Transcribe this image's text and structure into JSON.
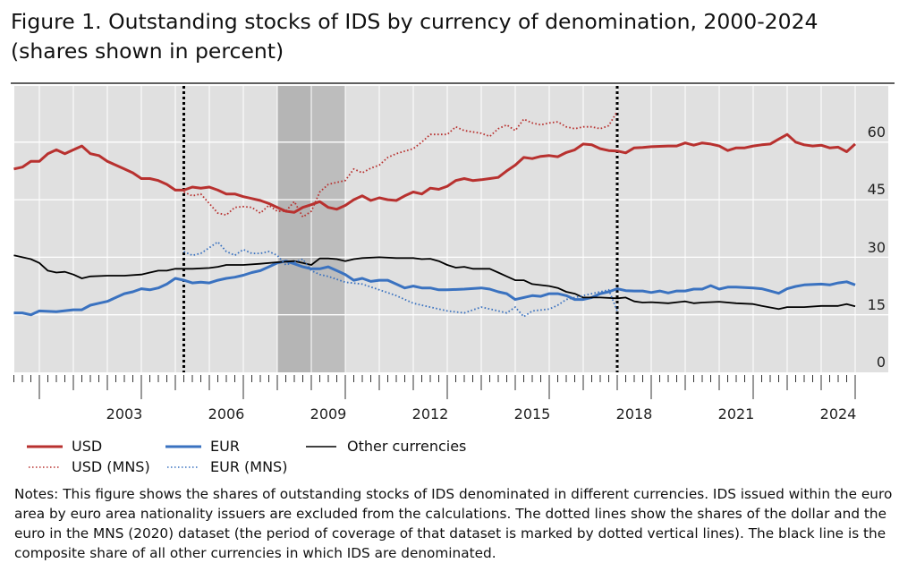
{
  "title": "Figure 1. Outstanding stocks of IDS by currency of denomination, 2000-2024",
  "subtitle": "(shares shown in percent)",
  "notes": "Notes: This figure shows the shares of outstanding stocks of IDS denominated in different currencies. IDS issued within the euro area by euro area nationality issuers are excluded from the calculations. The dotted lines show the shares of the dollar and the euro in the MNS (2020) dataset (the period of coverage of that dataset is marked by dotted vertical lines). The black line is the composite share of all other currencies in which IDS are denominated.",
  "chart_data": {
    "type": "line",
    "xlim": [
      2000.25,
      2025.0
    ],
    "ylim": [
      0,
      74.5
    ],
    "y_axis_side": "right",
    "yticks": [
      "0",
      "15",
      "30",
      "45",
      "60"
    ],
    "xticks": [
      "2003",
      "2006",
      "2009",
      "2012",
      "2015",
      "2018",
      "2021",
      "2024"
    ],
    "grid": true,
    "legend_placement": "bottom",
    "vertical_dotted_lines": [
      2005.25,
      2018.0
    ],
    "shaded_periods": [
      [
        2008.0,
        2009.0
      ],
      [
        2009.0,
        2010.0
      ]
    ],
    "colors": {
      "usd": "#b8312f",
      "eur": "#3a72c0",
      "other": "#000000",
      "background": "#e0e0e0",
      "shade": "#b5b5b5"
    },
    "series": [
      {
        "name": "USD",
        "key": "usd",
        "style": "solid",
        "x": [
          2000.25,
          2000.5,
          2000.75,
          2001,
          2001.25,
          2001.5,
          2001.75,
          2002,
          2002.25,
          2002.5,
          2002.75,
          2003,
          2003.25,
          2003.5,
          2003.75,
          2004,
          2004.25,
          2004.5,
          2004.75,
          2005,
          2005.25,
          2005.5,
          2005.75,
          2006,
          2006.25,
          2006.5,
          2006.75,
          2007,
          2007.25,
          2007.5,
          2007.75,
          2008,
          2008.25,
          2008.5,
          2008.75,
          2009,
          2009.25,
          2009.5,
          2009.75,
          2010,
          2010.25,
          2010.5,
          2010.75,
          2011,
          2011.25,
          2011.5,
          2011.75,
          2012,
          2012.25,
          2012.5,
          2012.75,
          2013,
          2013.25,
          2013.5,
          2013.75,
          2014,
          2014.25,
          2014.5,
          2014.75,
          2015,
          2015.25,
          2015.5,
          2015.75,
          2016,
          2016.25,
          2016.5,
          2016.75,
          2017,
          2017.25,
          2017.5,
          2017.75,
          2018,
          2018.25,
          2018.5,
          2018.75,
          2019,
          2019.5,
          2019.75,
          2020,
          2020.25,
          2020.5,
          2020.75,
          2021,
          2021.25,
          2021.5,
          2021.75,
          2022,
          2022.25,
          2022.5,
          2022.75,
          2023,
          2023.25,
          2023.5,
          2023.75,
          2024,
          2024.25,
          2024.5,
          2024.75,
          2025
        ],
        "y": [
          53,
          53.5,
          55,
          55,
          57,
          58,
          57,
          58,
          59,
          57,
          56.5,
          55,
          54,
          53,
          52,
          50.5,
          50.5,
          50,
          49,
          47.5,
          47.5,
          48.3,
          48,
          48.3,
          47.5,
          46.5,
          46.5,
          45.8,
          45.3,
          44.8,
          44,
          43,
          42,
          41.7,
          43,
          43.7,
          44.5,
          43,
          42.5,
          43.5,
          45,
          46,
          44.8,
          45.5,
          45,
          44.8,
          46,
          47,
          46.5,
          48,
          47.7,
          48.5,
          50,
          50.5,
          50,
          50.2,
          50.5,
          50.8,
          52.5,
          54,
          56,
          55.7,
          56.3,
          56.5,
          56.2,
          57.3,
          58,
          59.5,
          59.3,
          58.3,
          57.8,
          57.7,
          57.2,
          58.5,
          58.6,
          58.8,
          59,
          59,
          59.8,
          59.2,
          59.8,
          59.5,
          59,
          57.8,
          58.5,
          58.5,
          59,
          59.3,
          59.5,
          60.8,
          62,
          60,
          59.3,
          59,
          59.2,
          58.5,
          58.7,
          57.5,
          59.5
        ]
      },
      {
        "name": "EUR",
        "key": "eur",
        "style": "solid",
        "x": [
          2000.25,
          2000.5,
          2000.75,
          2001,
          2001.5,
          2002,
          2002.25,
          2002.5,
          2002.75,
          2003,
          2003.25,
          2003.5,
          2003.75,
          2004,
          2004.25,
          2004.5,
          2004.75,
          2005,
          2005.25,
          2005.5,
          2005.75,
          2006,
          2006.25,
          2006.5,
          2006.75,
          2007,
          2007.25,
          2007.5,
          2007.75,
          2008,
          2008.25,
          2008.5,
          2008.75,
          2009,
          2009.25,
          2009.5,
          2009.75,
          2010,
          2010.25,
          2010.5,
          2010.75,
          2011,
          2011.25,
          2011.5,
          2011.75,
          2012,
          2012.25,
          2012.5,
          2012.75,
          2013,
          2013.5,
          2014,
          2014.25,
          2014.5,
          2014.75,
          2015,
          2015.25,
          2015.5,
          2015.75,
          2016,
          2016.25,
          2016.5,
          2016.75,
          2017,
          2017.25,
          2017.5,
          2017.75,
          2018,
          2018.25,
          2018.5,
          2018.75,
          2019,
          2019.25,
          2019.5,
          2019.75,
          2020,
          2020.25,
          2020.5,
          2020.75,
          2021,
          2021.25,
          2021.5,
          2022,
          2022.25,
          2022.5,
          2022.75,
          2023,
          2023.25,
          2023.5,
          2024,
          2024.25,
          2024.5,
          2024.75,
          2025
        ],
        "y": [
          15.5,
          15.5,
          15,
          16,
          15.8,
          16.3,
          16.3,
          17.5,
          18,
          18.5,
          19.5,
          20.5,
          21,
          21.8,
          21.5,
          22,
          23,
          24.5,
          24,
          23.3,
          23.5,
          23.3,
          24,
          24.5,
          24.8,
          25.3,
          26,
          26.5,
          27.5,
          28.5,
          29,
          28.3,
          27.5,
          27,
          27,
          27.5,
          26.5,
          25.5,
          24,
          24.5,
          23.7,
          24,
          24,
          23,
          22,
          22.5,
          22,
          22,
          21.5,
          21.5,
          21.7,
          22,
          21.7,
          21,
          20.5,
          19,
          19.5,
          20,
          19.8,
          20.5,
          20.5,
          20,
          19,
          19,
          19.5,
          20.5,
          21,
          21.8,
          21.3,
          21.2,
          21.2,
          20.8,
          21.2,
          20.7,
          21.2,
          21.2,
          21.7,
          21.7,
          22.6,
          21.7,
          22.2,
          22.2,
          22,
          21.8,
          21.2,
          20.6,
          21.8,
          22.4,
          22.8,
          23,
          22.8,
          23.3,
          23.6,
          22.8
        ]
      },
      {
        "name": "Other currencies",
        "key": "other",
        "style": "solid",
        "x": [
          2000.25,
          2000.5,
          2000.75,
          2001,
          2001.25,
          2001.5,
          2001.75,
          2002,
          2002.25,
          2002.5,
          2003,
          2003.5,
          2004,
          2004.25,
          2004.5,
          2004.75,
          2005,
          2005.5,
          2006,
          2006.25,
          2006.5,
          2007,
          2007.5,
          2008,
          2008.5,
          2008.75,
          2009,
          2009.25,
          2009.5,
          2009.75,
          2010,
          2010.25,
          2010.5,
          2011,
          2011.5,
          2012,
          2012.25,
          2012.5,
          2012.75,
          2013,
          2013.25,
          2013.5,
          2013.75,
          2014.25,
          2014.5,
          2014.75,
          2015,
          2015.25,
          2015.5,
          2016,
          2016.25,
          2016.5,
          2016.75,
          2017,
          2017.5,
          2018,
          2018.25,
          2018.5,
          2018.75,
          2019,
          2019.5,
          2020,
          2020.25,
          2020.5,
          2021,
          2021.5,
          2022,
          2022.25,
          2022.75,
          2023,
          2023.5,
          2024,
          2024.5,
          2024.75,
          2025
        ],
        "y": [
          30.5,
          30,
          29.5,
          28.5,
          26.5,
          26,
          26.2,
          25.5,
          24.5,
          25,
          25.2,
          25.2,
          25.5,
          26,
          26.5,
          26.5,
          27,
          27,
          27.2,
          27.5,
          28,
          28,
          28.3,
          28.7,
          29,
          28.5,
          28,
          29.7,
          29.7,
          29.5,
          29,
          29.5,
          29.8,
          30,
          29.8,
          29.8,
          29.5,
          29.6,
          29,
          28,
          27.3,
          27.5,
          27,
          27,
          26,
          25,
          24,
          24,
          23,
          22.5,
          22,
          21,
          20.5,
          19.5,
          19.5,
          19.3,
          19.5,
          18.5,
          18.2,
          18.3,
          18,
          18.5,
          18,
          18.2,
          18.4,
          18,
          17.8,
          17.3,
          16.5,
          17,
          17,
          17.3,
          17.3,
          17.8,
          17.2
        ]
      },
      {
        "name": "USD (MNS)",
        "key": "usd",
        "style": "dotted",
        "x": [
          2005.25,
          2005.5,
          2005.75,
          2006,
          2006.25,
          2006.5,
          2006.75,
          2007,
          2007.25,
          2007.5,
          2007.75,
          2008,
          2008.25,
          2008.5,
          2008.75,
          2009,
          2009.25,
          2009.5,
          2009.75,
          2010,
          2010.25,
          2010.5,
          2010.75,
          2011,
          2011.25,
          2011.5,
          2012,
          2012.25,
          2012.5,
          2012.75,
          2013,
          2013.25,
          2013.5,
          2014,
          2014.25,
          2014.5,
          2014.75,
          2015,
          2015.25,
          2015.5,
          2015.75,
          2016,
          2016.25,
          2016.5,
          2016.75,
          2017,
          2017.25,
          2017.5,
          2017.75,
          2018
        ],
        "y": [
          47,
          46,
          46.5,
          44,
          41.5,
          41,
          43,
          43.2,
          43,
          41.5,
          43.5,
          42,
          42,
          44.5,
          40.5,
          42,
          47,
          49,
          49.5,
          50,
          53,
          52,
          53.2,
          54,
          56,
          57,
          58.3,
          60,
          62,
          62,
          62,
          64,
          63,
          62.3,
          61.5,
          63.5,
          64.5,
          63,
          66,
          65,
          64.5,
          65,
          65.3,
          64,
          63.5,
          64,
          64,
          63.5,
          64.3,
          68
        ]
      },
      {
        "name": "EUR (MNS)",
        "key": "eur",
        "style": "dotted",
        "x": [
          2005.25,
          2005.5,
          2005.75,
          2006,
          2006.25,
          2006.5,
          2006.75,
          2007,
          2007.25,
          2007.5,
          2007.75,
          2008,
          2008.25,
          2008.5,
          2008.75,
          2009,
          2009.25,
          2009.5,
          2010,
          2010.5,
          2011,
          2011.5,
          2012,
          2012.5,
          2013,
          2013.5,
          2014,
          2014.5,
          2014.75,
          2015,
          2015.25,
          2015.5,
          2016,
          2016.25,
          2016.5,
          2017,
          2017.5,
          2017.75,
          2018
        ],
        "y": [
          31.5,
          30.5,
          31,
          32.5,
          34,
          31.5,
          30.5,
          32,
          31,
          31,
          31.5,
          30.5,
          28,
          28.7,
          29.5,
          26.5,
          25.5,
          25,
          23.5,
          23,
          21.5,
          20,
          18,
          17,
          16,
          15.5,
          17,
          16,
          15.5,
          17,
          14.5,
          16,
          16.5,
          17.5,
          19,
          20,
          21,
          21.5,
          16
        ]
      }
    ]
  }
}
